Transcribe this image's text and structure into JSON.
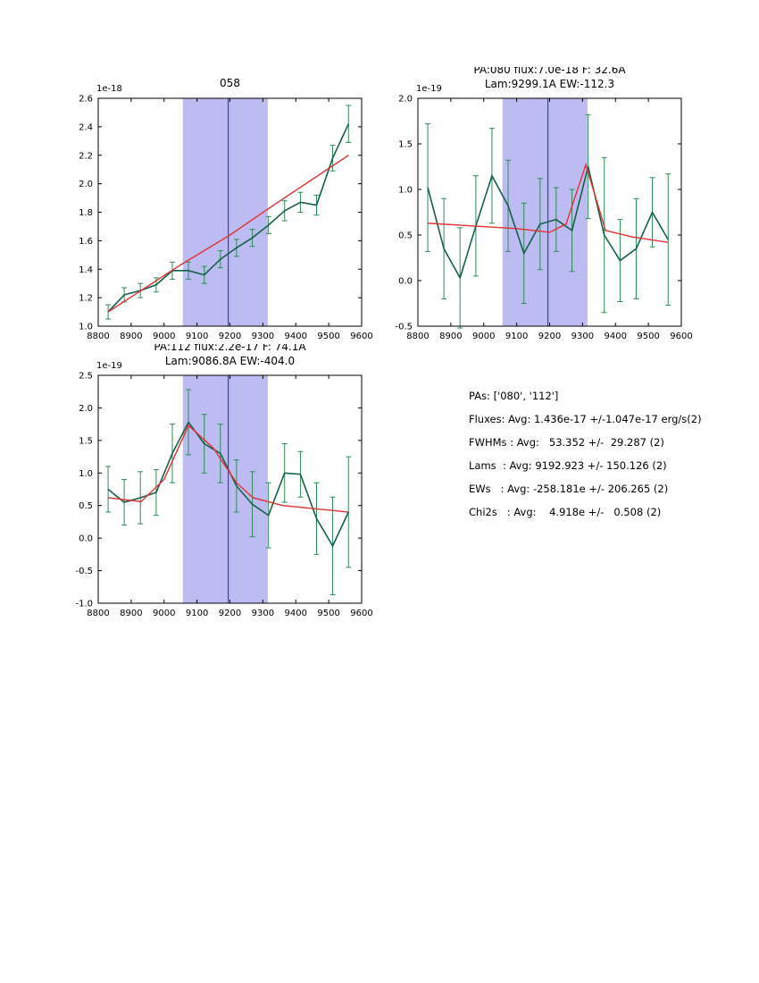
{
  "colors": {
    "line_green": "#15604a",
    "err_green": "#2e8b57",
    "fit_red": "#e03131",
    "band": "#bcbcf2",
    "vline": "#2323b8",
    "frame": "#000000"
  },
  "chart_data": [
    {
      "type": "line",
      "title_lines": [
        "058"
      ],
      "offset_label": "1e-18",
      "xlim": [
        8800,
        9600
      ],
      "ylim": [
        1.0,
        2.6
      ],
      "xticks": [
        8800,
        8900,
        9000,
        9100,
        9200,
        9300,
        9400,
        9500,
        9600
      ],
      "yticks": [
        1.0,
        1.2,
        1.4,
        1.6,
        1.8,
        2.0,
        2.2,
        2.4,
        2.6
      ],
      "band": [
        9057,
        9315
      ],
      "vline": 9195,
      "x": [
        8830,
        8879,
        8928,
        8976,
        9025,
        9074,
        9122,
        9171,
        9220,
        9268,
        9317,
        9366,
        9414,
        9463,
        9512,
        9560
      ],
      "y": [
        1.1,
        1.22,
        1.25,
        1.29,
        1.39,
        1.39,
        1.36,
        1.47,
        1.55,
        1.62,
        1.71,
        1.81,
        1.87,
        1.85,
        2.18,
        2.42
      ],
      "yerr": [
        0.05,
        0.05,
        0.05,
        0.05,
        0.06,
        0.06,
        0.06,
        0.06,
        0.06,
        0.06,
        0.06,
        0.07,
        0.07,
        0.07,
        0.09,
        0.13
      ],
      "fit": {
        "x": [
          8830,
          9050,
          9200,
          9320,
          9560
        ],
        "y": [
          1.1,
          1.43,
          1.64,
          1.83,
          2.2
        ]
      }
    },
    {
      "type": "line",
      "title_lines": [
        "PA:080 flux:7.0e-18 F: 32.6A",
        "Lam:9299.1A EW:-112.3"
      ],
      "offset_label": "1e-19",
      "xlim": [
        8800,
        9600
      ],
      "ylim": [
        -0.5,
        2.0
      ],
      "xticks": [
        8800,
        8900,
        9000,
        9100,
        9200,
        9300,
        9400,
        9500,
        9600
      ],
      "yticks": [
        -0.5,
        0.0,
        0.5,
        1.0,
        1.5,
        2.0
      ],
      "band": [
        9057,
        9315
      ],
      "vline": 9195,
      "x": [
        8830,
        8879,
        8928,
        8976,
        9025,
        9074,
        9122,
        9171,
        9220,
        9268,
        9317,
        9366,
        9414,
        9463,
        9512,
        9560
      ],
      "y": [
        1.02,
        0.35,
        0.03,
        0.6,
        1.15,
        0.82,
        0.3,
        0.62,
        0.67,
        0.55,
        1.25,
        0.5,
        0.22,
        0.35,
        0.75,
        0.45
      ],
      "yerr": [
        0.7,
        0.55,
        0.55,
        0.55,
        0.52,
        0.5,
        0.55,
        0.5,
        0.35,
        0.45,
        0.57,
        0.85,
        0.45,
        0.55,
        0.38,
        0.72
      ],
      "fit": {
        "x": [
          8830,
          9100,
          9200,
          9250,
          9310,
          9370,
          9450,
          9560
        ],
        "y": [
          0.63,
          0.57,
          0.53,
          0.62,
          1.27,
          0.55,
          0.48,
          0.42
        ]
      }
    },
    {
      "type": "line",
      "title_lines": [
        "PA:112 flux:2.2e-17 F: 74.1A",
        "Lam:9086.8A EW:-404.0"
      ],
      "offset_label": "1e-19",
      "xlim": [
        8800,
        9600
      ],
      "ylim": [
        -1.0,
        2.5
      ],
      "xticks": [
        8800,
        8900,
        9000,
        9100,
        9200,
        9300,
        9400,
        9500,
        9600
      ],
      "yticks": [
        -1.0,
        -0.5,
        0.0,
        0.5,
        1.0,
        1.5,
        2.0,
        2.5
      ],
      "band": [
        9057,
        9315
      ],
      "vline": 9195,
      "x": [
        8830,
        8879,
        8928,
        8976,
        9025,
        9074,
        9122,
        9171,
        9220,
        9268,
        9317,
        9366,
        9414,
        9463,
        9512,
        9560
      ],
      "y": [
        0.75,
        0.55,
        0.62,
        0.7,
        1.3,
        1.78,
        1.45,
        1.3,
        0.8,
        0.52,
        0.35,
        1.0,
        0.98,
        0.3,
        -0.12,
        0.4
      ],
      "yerr": [
        0.35,
        0.35,
        0.4,
        0.35,
        0.45,
        0.5,
        0.45,
        0.45,
        0.4,
        0.5,
        0.5,
        0.45,
        0.35,
        0.55,
        0.75,
        0.85
      ],
      "fit": {
        "x": [
          8830,
          8930,
          9000,
          9074,
          9150,
          9220,
          9270,
          9360,
          9560
        ],
        "y": [
          0.62,
          0.56,
          0.9,
          1.73,
          1.38,
          0.85,
          0.62,
          0.5,
          0.4
        ]
      }
    }
  ],
  "stats_panel": {
    "lines": [
      "PAs: ['080', '112']",
      "Fluxes: Avg: 1.436e-17 +/-1.047e-17 erg/s(2)",
      "FWHMs : Avg:   53.352 +/-  29.287 (2)",
      "Lams  : Avg: 9192.923 +/- 150.126 (2)",
      "EWs   : Avg: -258.181e +/- 206.265 (2)",
      "Chi2s   : Avg:    4.918e +/-   0.508 (2)"
    ]
  }
}
